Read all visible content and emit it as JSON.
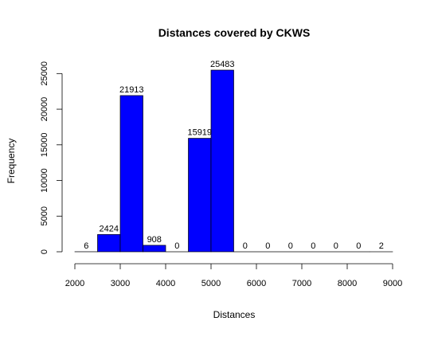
{
  "chart_data": {
    "type": "bar",
    "title": "Distances covered by CKWS",
    "xlabel": "Distances",
    "ylabel": "Frequency",
    "xlim": [
      2000,
      9000
    ],
    "ylim": [
      0,
      25483
    ],
    "x_ticks": [
      2000,
      3000,
      4000,
      5000,
      6000,
      7000,
      8000,
      9000
    ],
    "y_ticks": [
      0,
      5000,
      10000,
      15000,
      20000,
      25000
    ],
    "bins": [
      {
        "start": 2000,
        "end": 2500,
        "count": 6
      },
      {
        "start": 2500,
        "end": 3000,
        "count": 2424
      },
      {
        "start": 3000,
        "end": 3500,
        "count": 21913
      },
      {
        "start": 3500,
        "end": 4000,
        "count": 908
      },
      {
        "start": 4000,
        "end": 4500,
        "count": 0
      },
      {
        "start": 4500,
        "end": 5000,
        "count": 15919
      },
      {
        "start": 5000,
        "end": 5500,
        "count": 25483
      },
      {
        "start": 5500,
        "end": 6000,
        "count": 0
      },
      {
        "start": 6000,
        "end": 6500,
        "count": 0
      },
      {
        "start": 6500,
        "end": 7000,
        "count": 0
      },
      {
        "start": 7000,
        "end": 7500,
        "count": 0
      },
      {
        "start": 7500,
        "end": 8000,
        "count": 0
      },
      {
        "start": 8000,
        "end": 8500,
        "count": 0
      },
      {
        "start": 8500,
        "end": 9000,
        "count": 2
      }
    ],
    "bar_color": "#0000ff",
    "grid": false,
    "legend": "none"
  }
}
